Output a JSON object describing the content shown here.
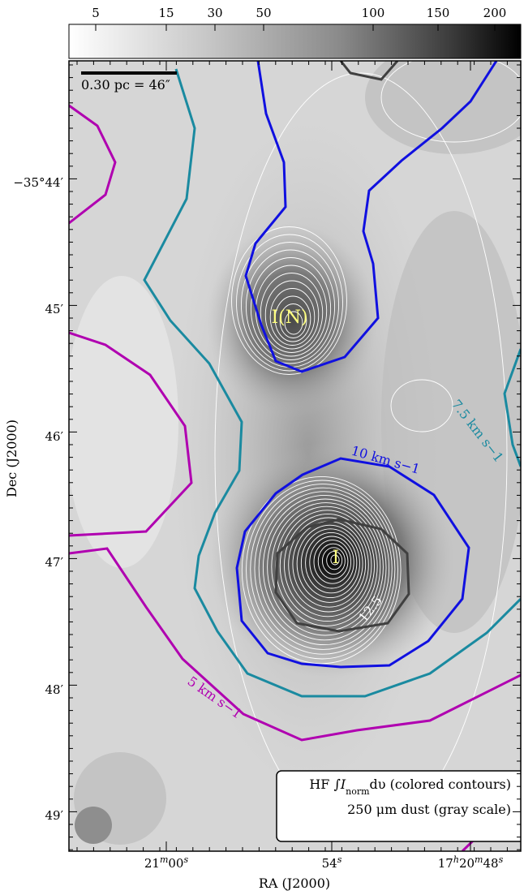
{
  "chart_data": {
    "type": "contour-map",
    "colorbar": {
      "ticks": [
        "5",
        "15",
        "30",
        "50",
        "100",
        "150",
        "200"
      ],
      "colormap": "white-to-black gray scale"
    },
    "x_axis": {
      "label": "RA (J2000)",
      "ticks": [
        {
          "base": "21",
          "sup1": "m",
          "mid": "00",
          "sup2": "s"
        },
        {
          "base": "54",
          "sup1": "s",
          "mid": "",
          "sup2": ""
        },
        {
          "base": "17",
          "sup1": "h",
          "mid": "20",
          "sup2": "m",
          "tail": "48",
          "sup3": "s"
        }
      ]
    },
    "y_axis": {
      "label": "Dec (J2000)",
      "ticks": [
        "−35°44′",
        "45′",
        "46′",
        "47′",
        "48′",
        "49′"
      ]
    },
    "scale_bar": "0.30 pc = 46″",
    "sources": [
      {
        "name": "I(N)"
      },
      {
        "name": "I"
      }
    ],
    "contour_labels": {
      "magenta": "5 km s−1",
      "teal": "7.5 km s−1",
      "blue": "10 km s−1",
      "dark": "12.5"
    },
    "contour_colors": {
      "magenta": "#b000b0",
      "teal": "#1a8aa0",
      "blue": "#1010e0",
      "dark": "#404040",
      "dust": "#ffffff"
    },
    "legend": {
      "line1_prefix": "HF ∫",
      "line1_var": "I",
      "line1_sub": "norm",
      "line1_suffix": "dυ (colored contours)",
      "line2": "250 μm dust (gray scale)"
    },
    "beams": [
      "large beam (250 μm)",
      "small beam"
    ]
  }
}
